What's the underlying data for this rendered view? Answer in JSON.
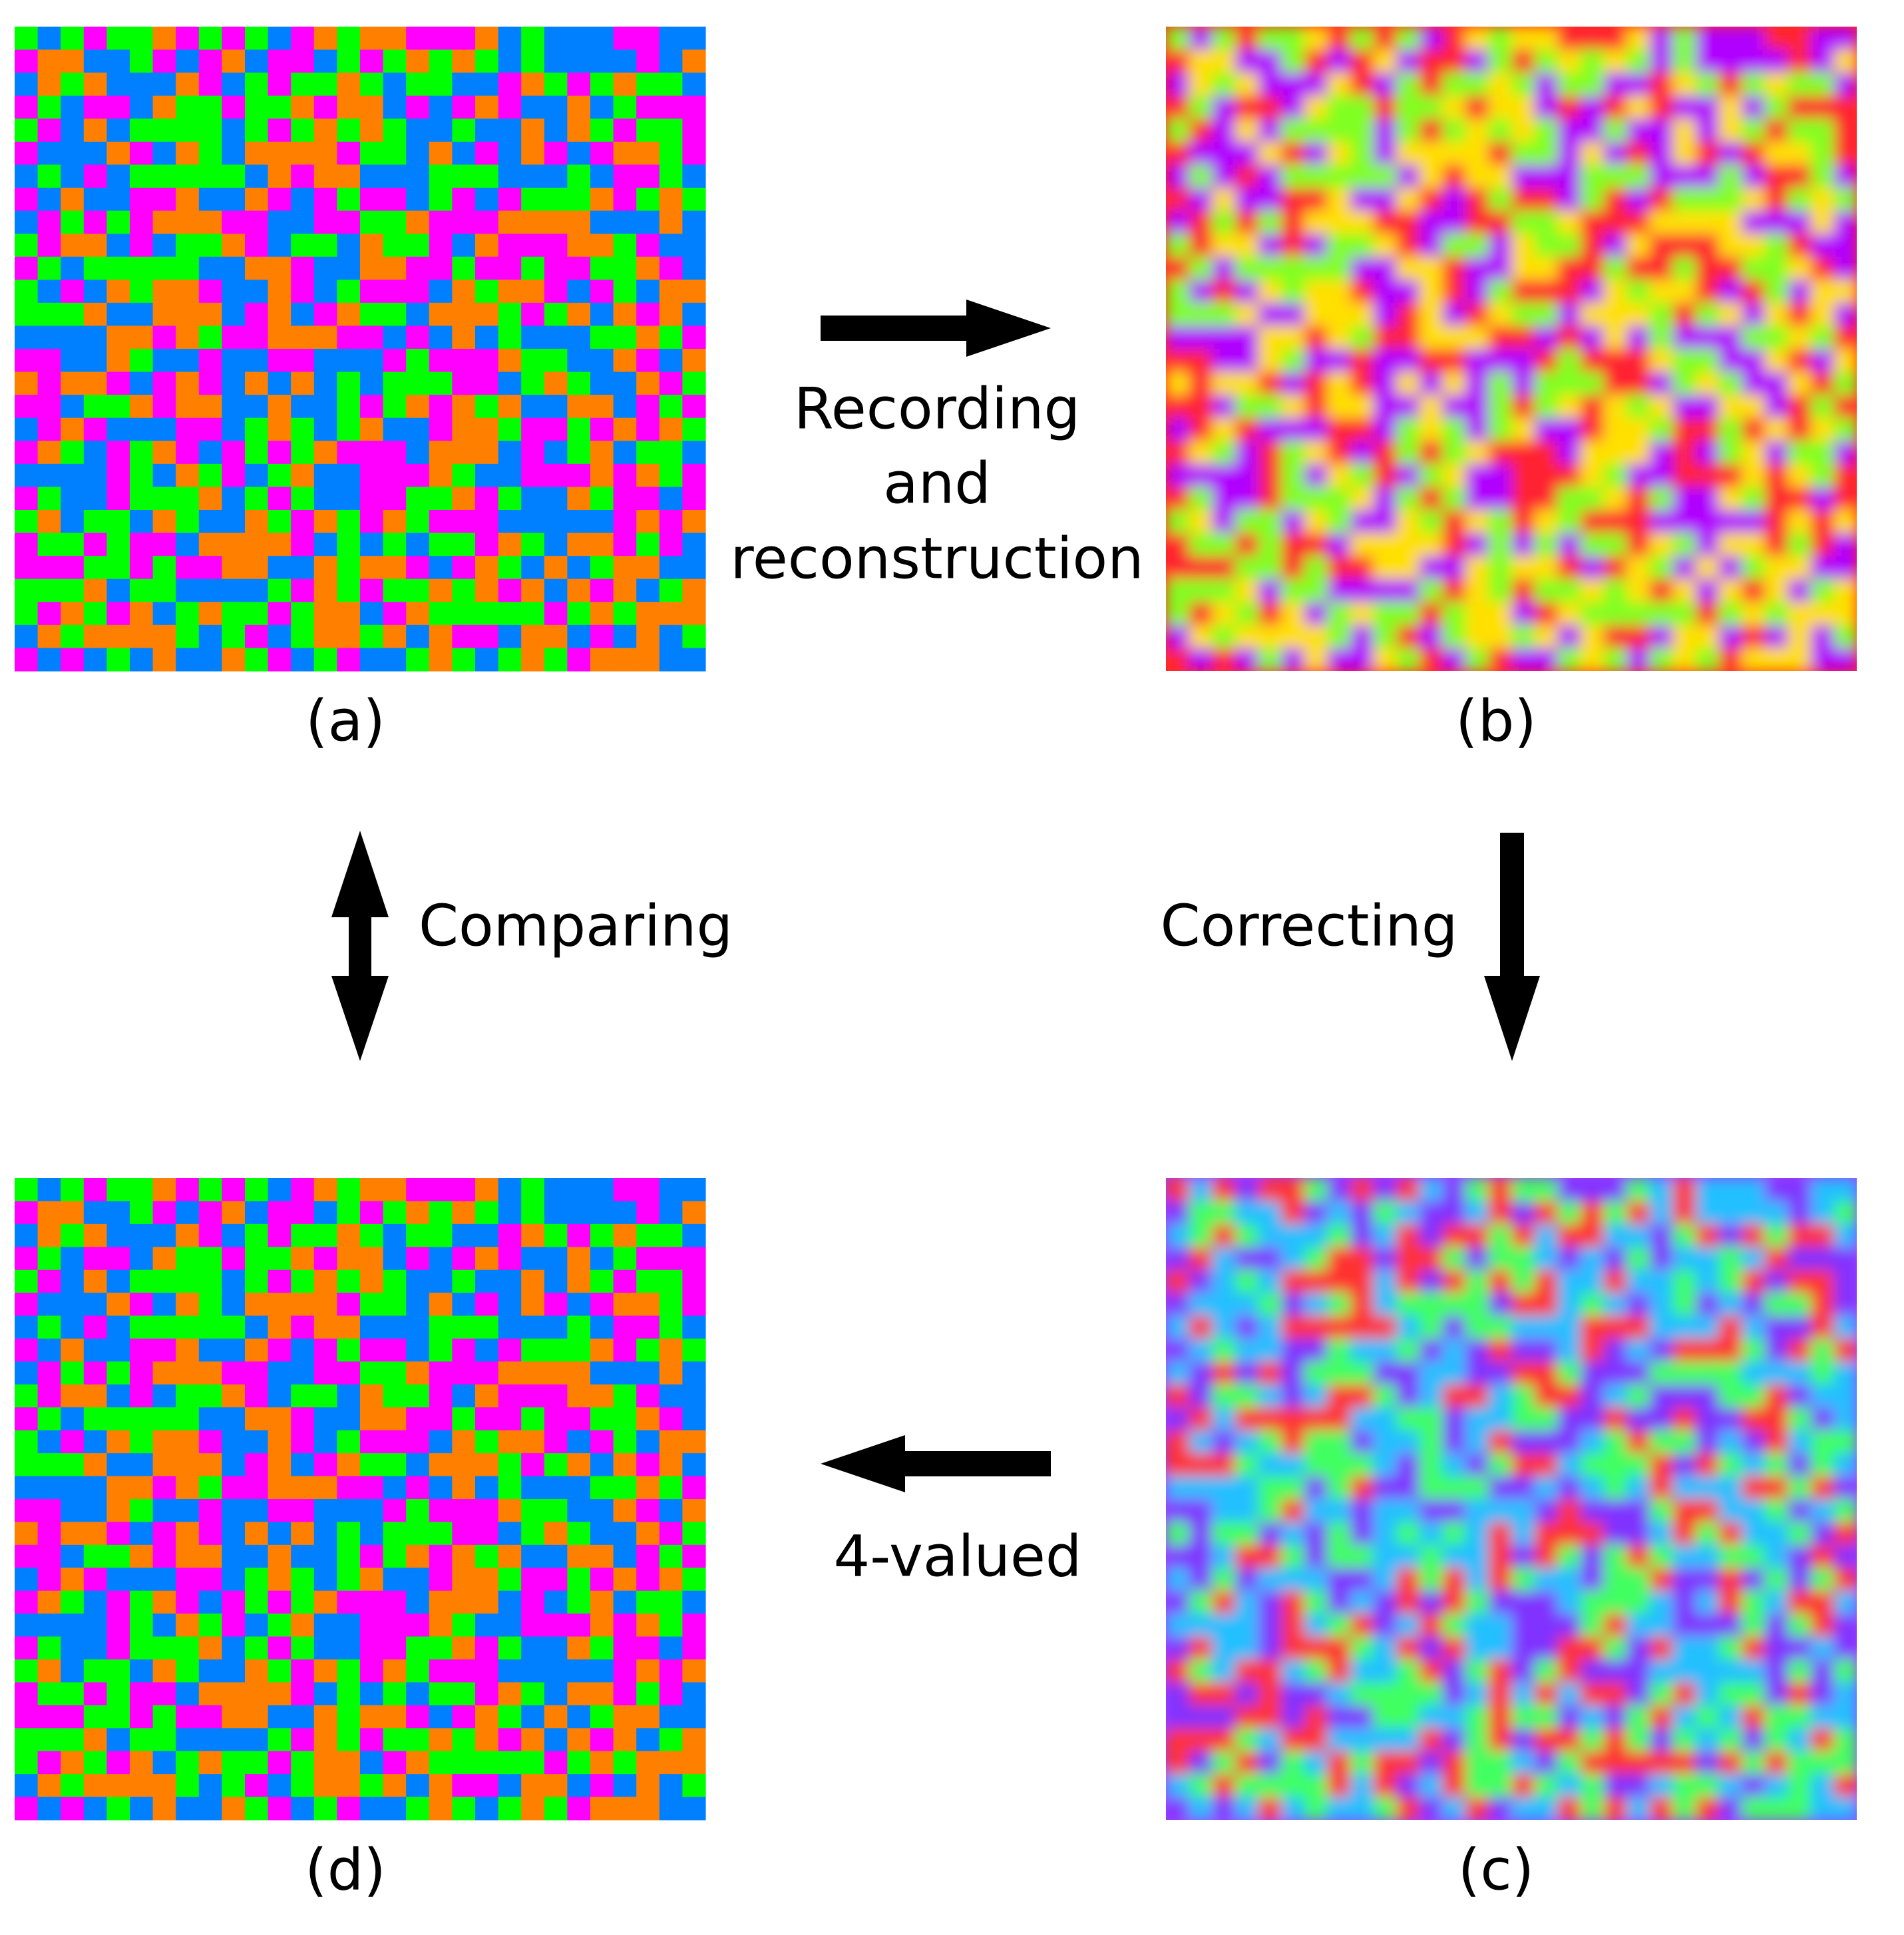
{
  "panels": [
    {
      "label": "(a)"
    },
    {
      "label": "(b)"
    },
    {
      "label": "(c)"
    },
    {
      "label": "(d)"
    }
  ],
  "steps": {
    "recording": [
      "Recording",
      "and",
      "reconstruction"
    ],
    "correcting": "Correcting",
    "comparing": "Comparing",
    "four_valued": "4-valued"
  }
}
